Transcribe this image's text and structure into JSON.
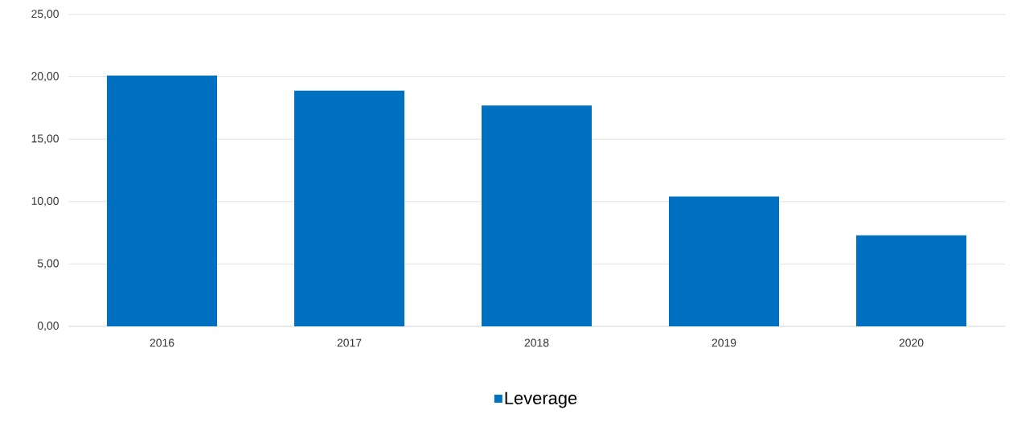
{
  "chart_data": {
    "type": "bar",
    "categories": [
      "2016",
      "2017",
      "2018",
      "2019",
      "2020"
    ],
    "series": [
      {
        "name": "Leverage",
        "color": "#0070c0",
        "values": [
          20.1,
          18.9,
          17.7,
          10.4,
          7.3
        ]
      }
    ],
    "ylim": [
      0,
      25
    ],
    "yticks": [
      {
        "value": 0,
        "label": "0,00"
      },
      {
        "value": 5,
        "label": "5,00"
      },
      {
        "value": 10,
        "label": "10,00"
      },
      {
        "value": 15,
        "label": "15,00"
      },
      {
        "value": 20,
        "label": "20,00"
      },
      {
        "value": 25,
        "label": "25,00"
      }
    ],
    "grid": "y",
    "legend": "bottom"
  }
}
